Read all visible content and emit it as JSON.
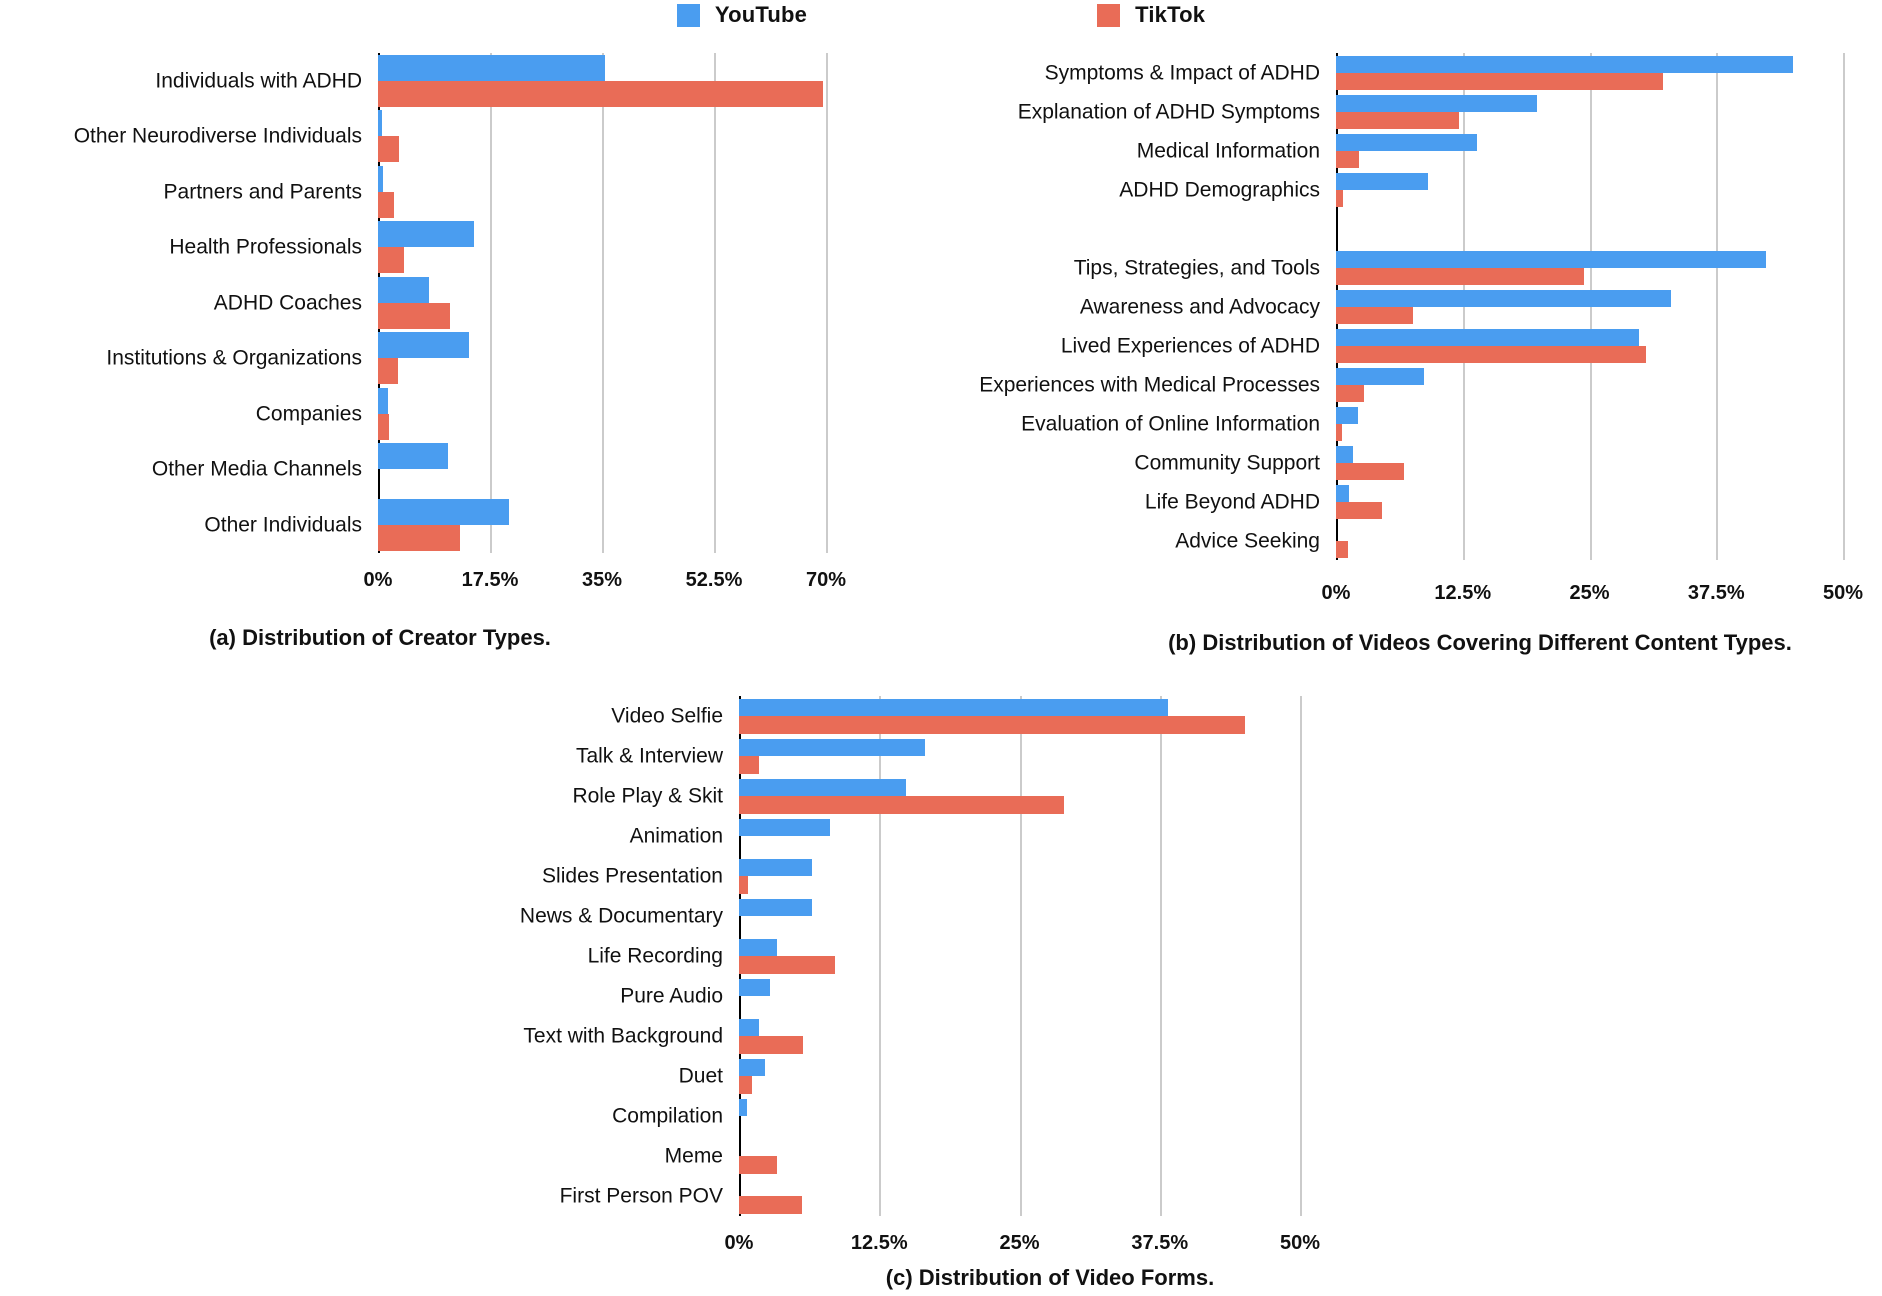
{
  "colors": {
    "youtube": "#4A9DF0",
    "tiktok": "#E96C57",
    "gridline": "#CBCBCB",
    "axis": "#000000",
    "text": "#111111"
  },
  "legend": {
    "items": [
      {
        "label": "YouTube",
        "color_key": "youtube"
      },
      {
        "label": "TikTok",
        "color_key": "tiktok"
      }
    ]
  },
  "chart_data": [
    {
      "id": "a",
      "type": "bar",
      "orientation": "horizontal",
      "title": "(a) Distribution of Creator Types.",
      "xlabel": "",
      "ylabel": "",
      "xlim": [
        0,
        70
      ],
      "ticks": [
        "0%",
        "17.5%",
        "35%",
        "52.5%",
        "70%"
      ],
      "tick_values": [
        0,
        17.5,
        35,
        52.5,
        70
      ],
      "grid": true,
      "legend_position": "top-center",
      "categories": [
        "Individuals with ADHD",
        "Other Neurodiverse Individuals",
        "Partners and Parents",
        "Health Professionals",
        "ADHD Coaches",
        "Institutions & Organizations",
        "Companies",
        "Other Media Channels",
        "Other Individuals"
      ],
      "series": [
        {
          "name": "YouTube",
          "values": [
            35.4,
            0.7,
            0.8,
            15.0,
            8.0,
            14.2,
            1.5,
            11.0,
            20.5
          ]
        },
        {
          "name": "TikTok",
          "values": [
            69.6,
            3.3,
            2.5,
            4.0,
            11.3,
            3.2,
            1.7,
            0,
            12.8
          ]
        }
      ]
    },
    {
      "id": "b",
      "type": "bar",
      "orientation": "horizontal",
      "title": "(b) Distribution of Videos Covering Different Content Types.",
      "xlabel": "",
      "ylabel": "",
      "xlim": [
        0,
        50
      ],
      "ticks": [
        "0%",
        "12.5%",
        "25%",
        "37.5%",
        "50%"
      ],
      "tick_values": [
        0,
        12.5,
        25,
        37.5,
        50
      ],
      "grid": true,
      "gap_after_index": 3,
      "categories": [
        "Symptoms & Impact of ADHD",
        "Explanation of ADHD Symptoms",
        "Medical Information",
        "ADHD Demographics",
        "Tips, Strategies, and Tools",
        "Awareness and Advocacy",
        "Lived Experiences of ADHD",
        "Experiences with Medical Processes",
        "Evaluation of Online Information",
        "Community Support",
        "Life Beyond ADHD",
        "Advice Seeking"
      ],
      "series": [
        {
          "name": "YouTube",
          "values": [
            45.1,
            19.8,
            13.9,
            9.1,
            42.4,
            33.0,
            29.9,
            8.7,
            2.2,
            1.7,
            1.3,
            0
          ]
        },
        {
          "name": "TikTok",
          "values": [
            32.2,
            12.1,
            2.3,
            0.7,
            24.5,
            7.6,
            30.6,
            2.8,
            0.6,
            6.7,
            4.5,
            1.2
          ]
        }
      ]
    },
    {
      "id": "c",
      "type": "bar",
      "orientation": "horizontal",
      "title": "(c) Distribution of Video Forms.",
      "xlabel": "",
      "ylabel": "",
      "xlim": [
        0,
        50
      ],
      "ticks": [
        "0%",
        "12.5%",
        "25%",
        "37.5%",
        "50%"
      ],
      "tick_values": [
        0,
        12.5,
        25,
        37.5,
        50
      ],
      "grid": true,
      "categories": [
        "Video Selfie",
        "Talk & Interview",
        "Role Play & Skit",
        "Animation",
        "Slides Presentation",
        "News & Documentary",
        "Life Recording",
        "Pure Audio",
        "Text with Background",
        "Duet",
        "Compilation",
        "Meme",
        "First Person POV"
      ],
      "series": [
        {
          "name": "YouTube",
          "values": [
            38.2,
            16.6,
            14.9,
            8.1,
            6.5,
            6.5,
            3.4,
            2.8,
            1.8,
            2.3,
            0.7,
            0,
            0
          ]
        },
        {
          "name": "TikTok",
          "values": [
            45.1,
            1.8,
            29.0,
            0,
            0.8,
            0,
            8.6,
            0,
            5.7,
            1.2,
            0,
            3.4,
            5.6
          ]
        }
      ]
    }
  ]
}
